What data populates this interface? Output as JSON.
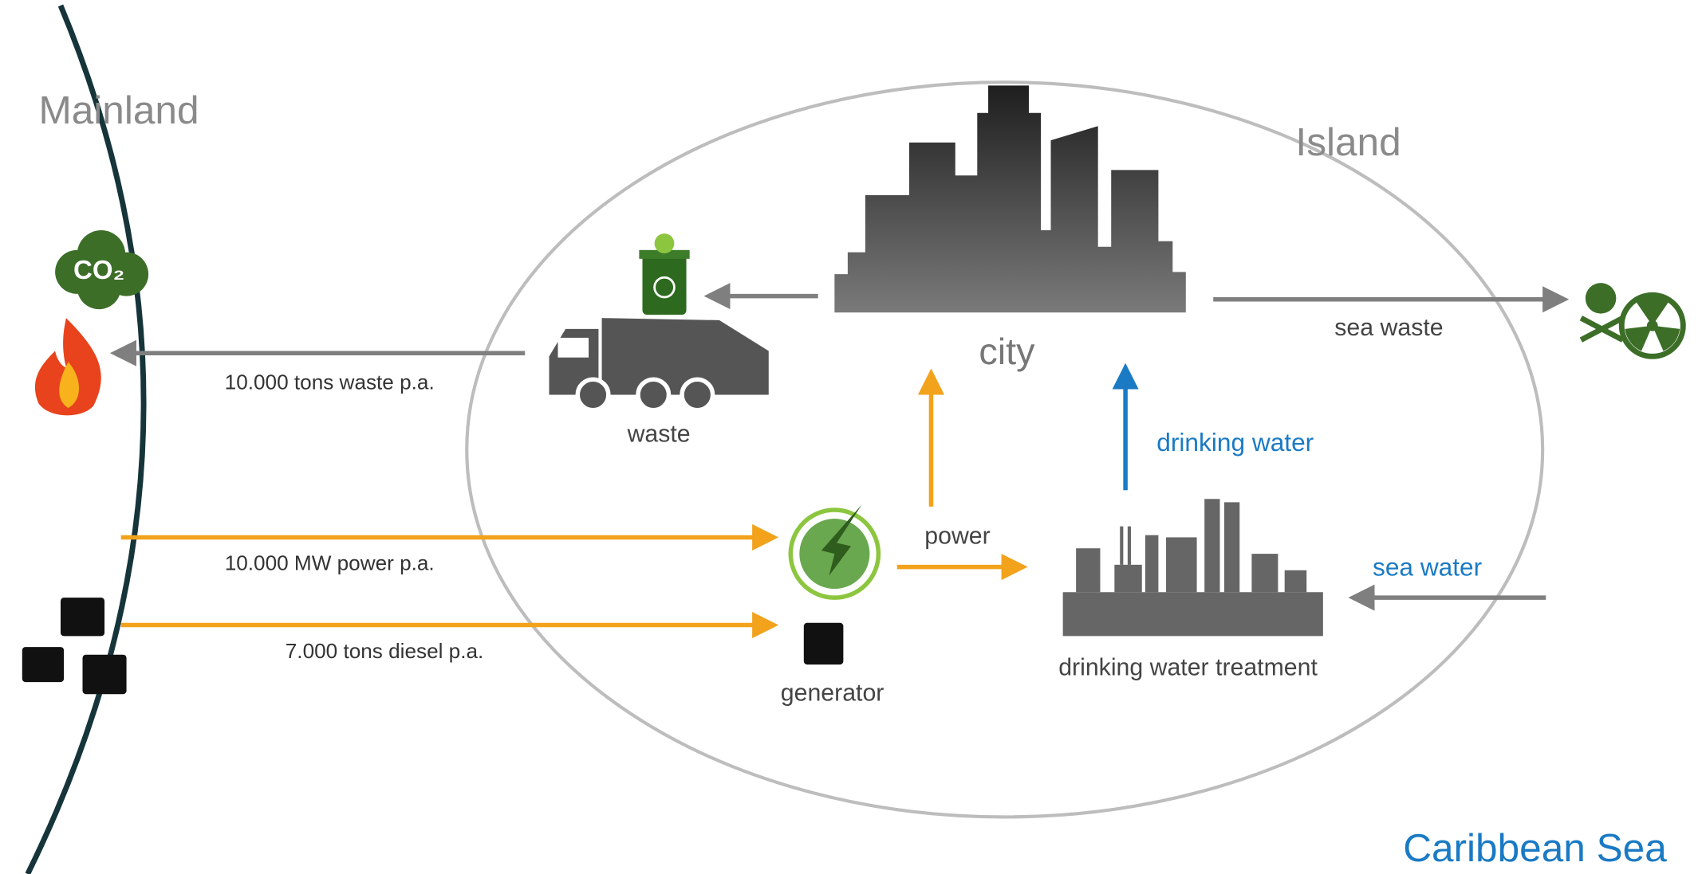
{
  "regions": {
    "mainland": "Mainland",
    "island": "Island",
    "sea": "Caribbean Sea"
  },
  "nodes": {
    "city": "city",
    "waste": "waste",
    "generator": "generator",
    "treatment": "drinking water treatment"
  },
  "flows": {
    "waste_out": "10.000 tons waste p.a.",
    "power_in": "10.000 MW power p.a.",
    "diesel_in": "7.000 tons diesel p.a.",
    "power": "power",
    "drinking_water": "drinking water",
    "sea_water": "sea water",
    "sea_waste": "sea waste"
  },
  "icons": {
    "co2": "CO₂"
  }
}
